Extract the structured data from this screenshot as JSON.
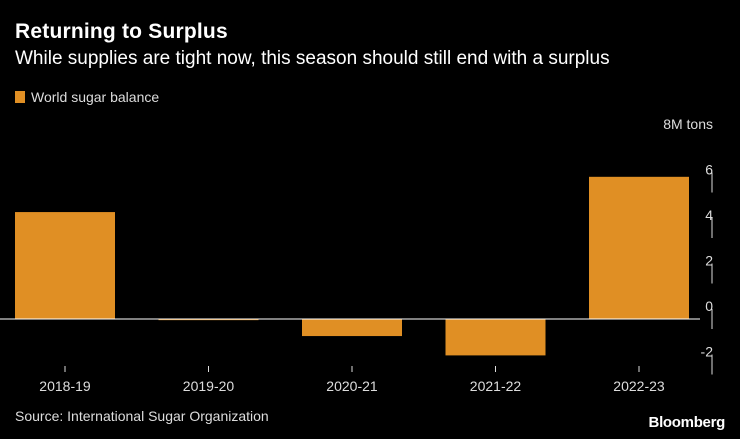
{
  "header": {
    "title": "Returning to Surplus",
    "subtitle": "While supplies are tight now, this season should still end with a surplus"
  },
  "footer": {
    "source": "Source: International Sugar Organization",
    "brand": "Bloomberg"
  },
  "colors": {
    "bar": "#e08f24",
    "axis": "#ffffff",
    "text": "#dddddd"
  },
  "chart_data": {
    "type": "bar",
    "title": "Returning to Surplus",
    "subtitle": "While supplies are tight now, this season should still end with a surplus",
    "legend": [
      "World sugar balance"
    ],
    "legend_position": "top-left",
    "categories": [
      "2018-19",
      "2019-20",
      "2020-21",
      "2021-22",
      "2022-23"
    ],
    "series": [
      {
        "name": "World sugar balance",
        "values": [
          4.7,
          -0.05,
          -0.75,
          -1.6,
          6.25
        ]
      }
    ],
    "ylabel": "8M tons",
    "ylim": [
      -2.5,
      8
    ],
    "yticks": [
      8,
      6,
      4,
      2,
      0,
      -2
    ],
    "ytick_labels": [
      "8M tons",
      "6",
      "4",
      "2",
      "0",
      "-2"
    ],
    "y_axis_side": "right",
    "grid": false
  }
}
